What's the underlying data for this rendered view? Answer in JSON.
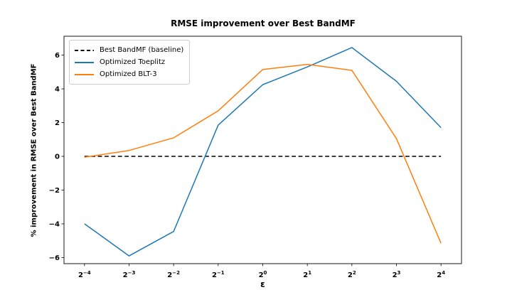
{
  "title": "RMSE improvement over Best BandMF",
  "chart_data": {
    "type": "line",
    "title": "RMSE improvement over Best BandMF",
    "xlabel": "ε",
    "ylabel": "% improvement in RMSE over Best BandMF",
    "x_exponents": [
      -4,
      -3,
      -2,
      -1,
      0,
      1,
      2,
      3,
      4
    ],
    "x_tick_labels": [
      "2⁻⁴",
      "2⁻³",
      "2⁻²",
      "2⁻¹",
      "2⁰",
      "2¹",
      "2²",
      "2³",
      "2⁴"
    ],
    "y_ticks": [
      -6,
      -4,
      -2,
      0,
      2,
      4,
      6
    ],
    "ylim": [
      -6.36,
      7.12
    ],
    "xlim_index": [
      -4.46,
      4.46
    ],
    "grid": false,
    "legend_position": "upper left",
    "axes_color": "#000000",
    "background": "#ffffff",
    "series": [
      {
        "name": "Best BandMF (baseline)",
        "color": "#000000",
        "style": "dashed",
        "values": [
          0,
          0,
          0,
          0,
          0,
          0,
          0,
          0,
          0
        ]
      },
      {
        "name": "Optimized Toeplitz",
        "color": "#1f77b4",
        "style": "solid",
        "values": [
          -4.0,
          -5.9,
          -4.45,
          1.85,
          4.25,
          5.3,
          6.45,
          4.45,
          1.7
        ]
      },
      {
        "name": "Optimized BLT-3",
        "color": "#ff7f0e",
        "style": "solid",
        "values": [
          -0.05,
          0.35,
          1.1,
          2.7,
          5.15,
          5.45,
          5.1,
          1.05,
          -5.15
        ]
      }
    ]
  }
}
